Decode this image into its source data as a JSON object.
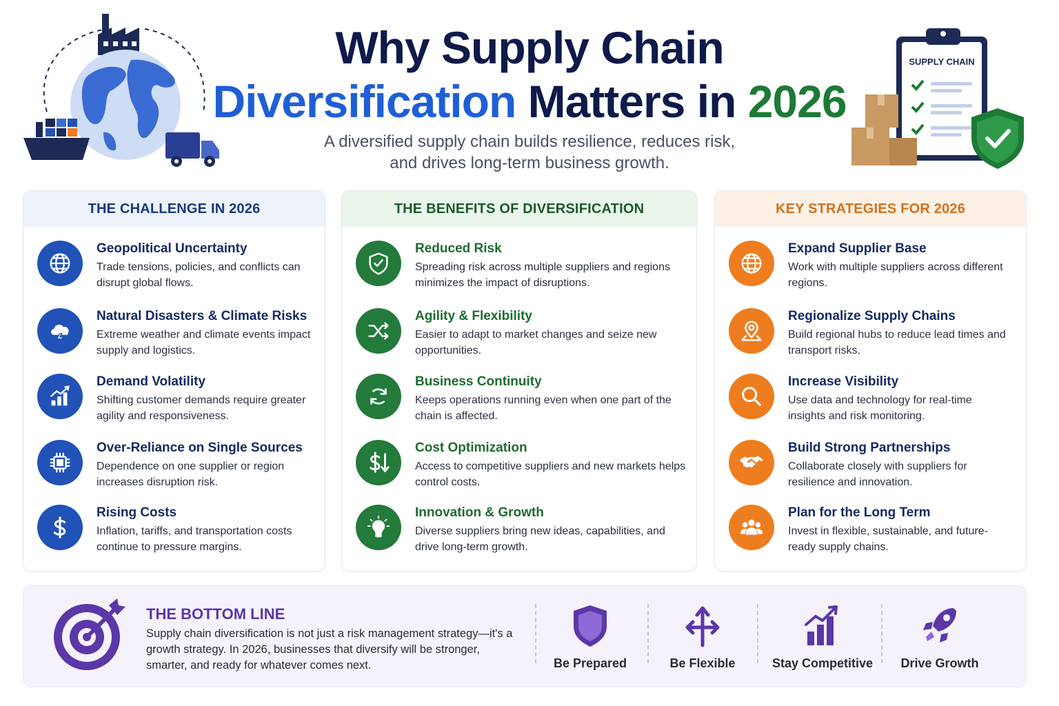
{
  "header": {
    "title_line1": "Why Supply Chain",
    "title_word_blue": "Diversification",
    "title_word_dark": "Matters in",
    "title_word_green": "2026",
    "subtitle_line1": "A diversified supply chain builds resilience, reduces risk,",
    "subtitle_line2": "and drives long-term business growth.",
    "clipboard_label": "SUPPLY CHAIN"
  },
  "columns": [
    {
      "heading": "THE CHALLENGE IN 2026",
      "items": [
        {
          "icon": "globe-icon",
          "title": "Geopolitical Uncertainty",
          "text": "Trade tensions, policies, and conflicts can disrupt global flows."
        },
        {
          "icon": "storm-cloud-icon",
          "title": "Natural Disasters & Climate Risks",
          "text": "Extreme weather and climate events impact supply and logistics."
        },
        {
          "icon": "rising-chart-icon",
          "title": "Demand Volatility",
          "text": "Shifting customer demands require greater agility and responsiveness."
        },
        {
          "icon": "chip-icon",
          "title": "Over-Reliance on Single Sources",
          "text": "Dependence on one supplier or region increases disruption risk."
        },
        {
          "icon": "dollar-icon",
          "title": "Rising Costs",
          "text": "Inflation, tariffs, and transportation costs continue to pressure margins."
        }
      ]
    },
    {
      "heading": "THE BENEFITS OF DIVERSIFICATION",
      "items": [
        {
          "icon": "shield-check-icon",
          "title": "Reduced Risk",
          "text": "Spreading risk across multiple suppliers and regions minimizes the impact of disruptions."
        },
        {
          "icon": "shuffle-icon",
          "title": "Agility & Flexibility",
          "text": "Easier to adapt to market changes and seize new opportunities."
        },
        {
          "icon": "refresh-icon",
          "title": "Business Continuity",
          "text": "Keeps operations running even when one part of the chain is affected."
        },
        {
          "icon": "dollar-down-icon",
          "title": "Cost Optimization",
          "text": "Access to competitive suppliers and new markets helps control costs."
        },
        {
          "icon": "lightbulb-icon",
          "title": "Innovation & Growth",
          "text": "Diverse suppliers bring new ideas, capabilities, and drive long-term growth."
        }
      ]
    },
    {
      "heading": "KEY STRATEGIES FOR 2026",
      "items": [
        {
          "icon": "globe-icon",
          "title": "Expand Supplier Base",
          "text": "Work with multiple suppliers across different regions."
        },
        {
          "icon": "location-pin-icon",
          "title": "Regionalize Supply Chains",
          "text": "Build regional hubs to reduce lead times and transport risks."
        },
        {
          "icon": "magnifier-icon",
          "title": "Increase Visibility",
          "text": "Use data and technology for real-time insights and risk monitoring."
        },
        {
          "icon": "handshake-icon",
          "title": "Build Strong Partnerships",
          "text": "Collaborate closely with suppliers for resilience and innovation."
        },
        {
          "icon": "people-icon",
          "title": "Plan for the Long Term",
          "text": "Invest in flexible, sustainable, and future-ready supply chains."
        }
      ]
    }
  ],
  "bottom": {
    "title": "THE BOTTOM LINE",
    "text": "Supply chain diversification is not just a risk management strategy—it's a growth strategy. In 2026, businesses that diversify will be stronger, smarter, and ready for whatever comes next.",
    "pillars": [
      {
        "icon": "shield-icon",
        "label": "Be Prepared"
      },
      {
        "icon": "split-arrows-icon",
        "label": "Be Flexible"
      },
      {
        "icon": "growth-chart-icon",
        "label": "Stay Competitive"
      },
      {
        "icon": "rocket-icon",
        "label": "Drive Growth"
      }
    ]
  },
  "colors": {
    "navy": "#0e1a4a",
    "blue": "#1f5fd6",
    "green": "#1d7a35",
    "orange": "#ee7d1f",
    "purple": "#5b37a8"
  }
}
